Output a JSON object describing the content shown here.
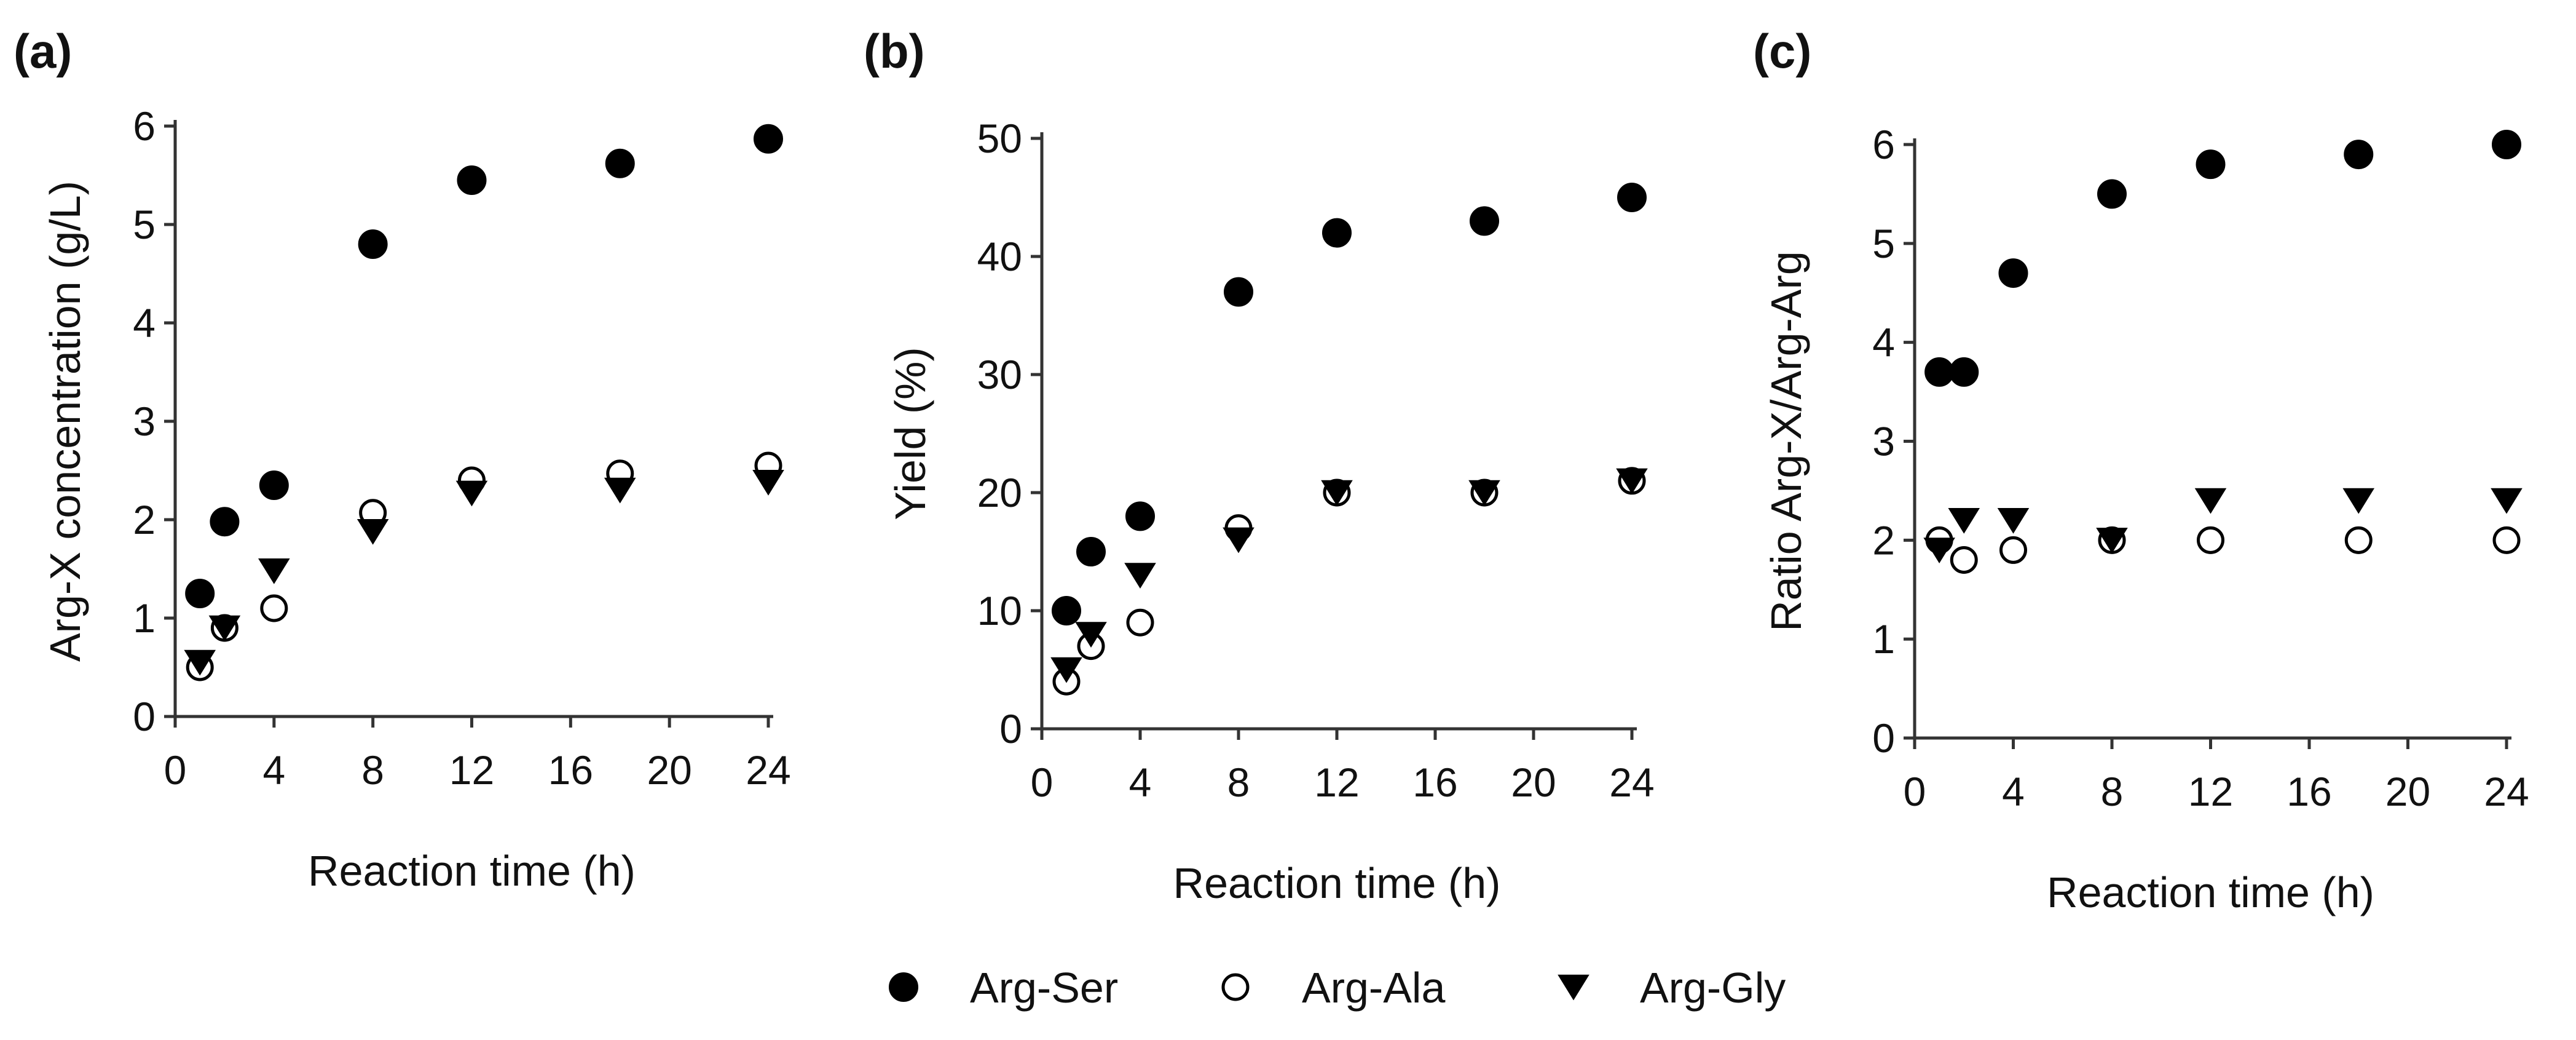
{
  "chart_data": [
    {
      "type": "scatter",
      "panel_label": "(a)",
      "title": "",
      "xlabel": "Reaction time (h)",
      "ylabel": "Arg-X concentration (g/L)",
      "xlim": [
        0,
        24
      ],
      "ylim": [
        0,
        6
      ],
      "xticks": [
        0,
        4,
        8,
        12,
        16,
        20,
        24
      ],
      "yticks": [
        0,
        1,
        2,
        3,
        4,
        5,
        6
      ],
      "x": [
        1,
        2,
        4,
        8,
        12,
        18,
        24
      ],
      "series": [
        {
          "name": "Arg-Ser",
          "marker": "filled-circle",
          "values": [
            1.25,
            1.98,
            2.35,
            4.8,
            5.45,
            5.62,
            5.87
          ]
        },
        {
          "name": "Arg-Ala",
          "marker": "open-circle",
          "values": [
            0.5,
            0.9,
            1.1,
            2.07,
            2.4,
            2.47,
            2.55
          ]
        },
        {
          "name": "Arg-Gly",
          "marker": "filled-triangle-down",
          "values": [
            0.55,
            0.9,
            1.48,
            1.88,
            2.27,
            2.3,
            2.38
          ]
        }
      ]
    },
    {
      "type": "scatter",
      "panel_label": "(b)",
      "title": "",
      "xlabel": "Reaction time (h)",
      "ylabel": "Yield (%)",
      "xlim": [
        0,
        24
      ],
      "ylim": [
        0,
        50
      ],
      "xticks": [
        0,
        4,
        8,
        12,
        16,
        20,
        24
      ],
      "yticks": [
        0,
        10,
        20,
        30,
        40,
        50
      ],
      "x": [
        1,
        2,
        4,
        8,
        12,
        18,
        24
      ],
      "series": [
        {
          "name": "Arg-Ser",
          "marker": "filled-circle",
          "values": [
            10,
            15,
            18,
            37,
            42,
            43,
            45
          ]
        },
        {
          "name": "Arg-Ala",
          "marker": "open-circle",
          "values": [
            4,
            7,
            9,
            17,
            20,
            20,
            21
          ]
        },
        {
          "name": "Arg-Gly",
          "marker": "filled-triangle-down",
          "values": [
            5,
            8,
            13,
            16,
            20,
            20,
            21
          ]
        }
      ]
    },
    {
      "type": "scatter",
      "panel_label": "(c)",
      "title": "",
      "xlabel": "Reaction time (h)",
      "ylabel": "Ratio Arg-X/Arg-Arg",
      "xlim": [
        0,
        24
      ],
      "ylim": [
        0,
        6
      ],
      "xticks": [
        0,
        4,
        8,
        12,
        16,
        20,
        24
      ],
      "yticks": [
        0,
        1,
        2,
        3,
        4,
        5,
        6
      ],
      "x": [
        1,
        2,
        4,
        8,
        12,
        18,
        24
      ],
      "series": [
        {
          "name": "Arg-Ser",
          "marker": "filled-circle",
          "values": [
            3.7,
            3.7,
            4.7,
            5.5,
            5.8,
            5.9,
            6.0
          ]
        },
        {
          "name": "Arg-Ala",
          "marker": "open-circle",
          "values": [
            2.0,
            1.8,
            1.9,
            2.0,
            2.0,
            2.0,
            2.0
          ]
        },
        {
          "name": "Arg-Gly",
          "marker": "filled-triangle-down",
          "values": [
            1.9,
            2.2,
            2.2,
            2.0,
            2.4,
            2.4,
            2.4
          ]
        }
      ]
    }
  ],
  "legend": {
    "position": "bottom-center",
    "items": [
      {
        "label": "Arg-Ser",
        "marker": "filled-circle"
      },
      {
        "label": "Arg-Ala",
        "marker": "open-circle"
      },
      {
        "label": "Arg-Gly",
        "marker": "filled-triangle-down"
      }
    ]
  },
  "colors": {
    "marker_fill": "#000000",
    "marker_stroke": "#000000",
    "open_marker_fill": "#ffffff",
    "axis": "#333333",
    "text": "#111111"
  }
}
